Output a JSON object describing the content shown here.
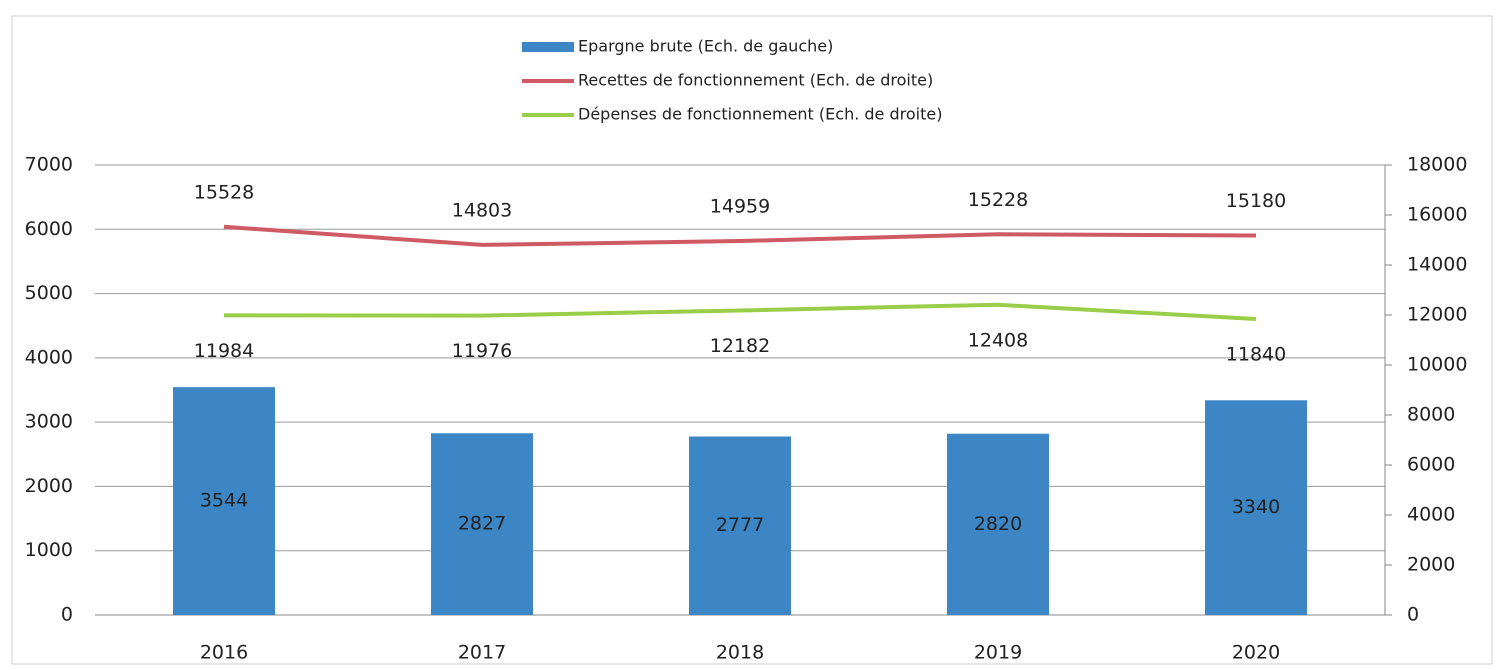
{
  "chart_data": {
    "type": "bar",
    "categories": [
      "2016",
      "2017",
      "2018",
      "2019",
      "2020"
    ],
    "series": [
      {
        "name": "Epargne brute (Ech. de gauche)",
        "type": "bar",
        "color": "#3d86c6",
        "values": [
          3544,
          2827,
          2777,
          2820,
          3340
        ]
      },
      {
        "name": "Recettes de fonctionnement (Ech. de droite)",
        "type": "line",
        "axis": "y2",
        "color": "#cf5a63",
        "values": [
          15528,
          14803,
          14959,
          15228,
          15180
        ]
      },
      {
        "name": "Dépenses de fonctionnement (Ech. de droite)",
        "type": "line",
        "axis": "y2",
        "color": "#9acd4a",
        "values": [
          11984,
          11976,
          12182,
          12408,
          11840
        ]
      }
    ],
    "ylim": [
      0,
      7000
    ],
    "yticks": [
      0,
      1000,
      2000,
      3000,
      4000,
      5000,
      6000,
      7000
    ],
    "y2lim": [
      0,
      18000
    ],
    "y2ticks": [
      0,
      2000,
      4000,
      6000,
      8000,
      10000,
      12000,
      14000,
      16000,
      18000
    ],
    "grid": true,
    "legend": "top"
  }
}
